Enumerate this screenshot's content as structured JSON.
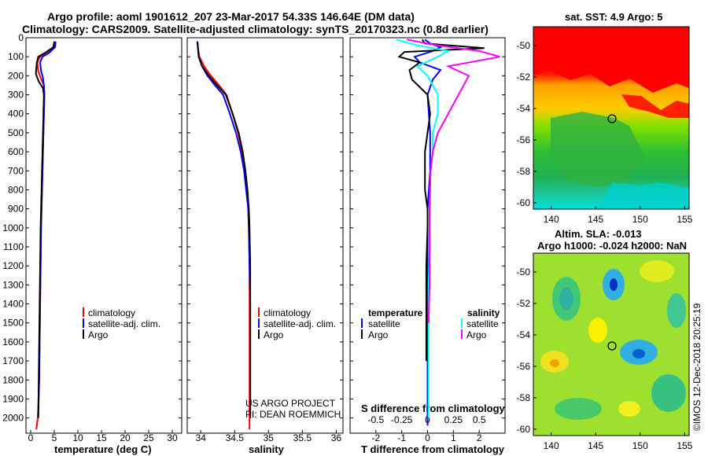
{
  "header": {
    "line1": "Argo profile: aoml 1901612_207 23-Mar-2017 54.33S 146.64E (DM data)",
    "line2": "Climatology: CARS2009. Satellite-adjusted climatology: synTS_20170323.nc (0.8d earlier)"
  },
  "depth_ticks": [
    "0",
    "100",
    "200",
    "300",
    "400",
    "500",
    "600",
    "700",
    "800",
    "900",
    "1000",
    "1100",
    "1200",
    "1300",
    "1400",
    "1500",
    "1600",
    "1700",
    "1800",
    "1900",
    "2000"
  ],
  "colors": {
    "climatology": "#ff0000",
    "satellite": "#0000ff",
    "argo": "#000000",
    "sat_s": "#00ffff",
    "argo_s": "#ff00ff"
  },
  "chart_data": [
    {
      "type": "line",
      "name": "temperature-panel",
      "xlabel": "temperature (deg C)",
      "ylabel": "",
      "xlim": [
        -1,
        32
      ],
      "ylim": [
        2080,
        0
      ],
      "xticks": [
        "0",
        "5",
        "10",
        "15",
        "20",
        "25",
        "30"
      ],
      "legend": [
        "climatology",
        "satellite-adj. clim.",
        "Argo"
      ],
      "series": [
        {
          "name": "climatology",
          "color": "#ff0000",
          "x": [
            5.3,
            5.2,
            3.6,
            2.0,
            1.4,
            1.6,
            2.1,
            2.8,
            2.9,
            2.8,
            2.7,
            2.6,
            2.5,
            2.4,
            2.3,
            2.2,
            2.1,
            2.0,
            1.9,
            1.8,
            1.6,
            1.5,
            1.2
          ],
          "y": [
            20,
            50,
            80,
            100,
            130,
            175,
            210,
            250,
            300,
            400,
            500,
            600,
            700,
            800,
            900,
            1000,
            1200,
            1400,
            1600,
            1800,
            1950,
            2000,
            2060
          ]
        },
        {
          "name": "satellite-adj. clim.",
          "color": "#0000ff",
          "x": [
            5.2,
            5.1,
            3.9,
            2.5,
            2.0,
            2.2,
            2.6,
            2.8,
            2.9,
            2.8,
            2.7,
            2.6,
            2.5,
            2.4,
            2.3,
            2.2,
            2.1,
            2.0,
            1.9,
            1.8,
            1.6
          ],
          "y": [
            20,
            50,
            80,
            100,
            130,
            175,
            210,
            250,
            300,
            400,
            500,
            600,
            700,
            800,
            900,
            1000,
            1200,
            1400,
            1600,
            1800,
            2000
          ]
        },
        {
          "name": "Argo",
          "color": "#000000",
          "x": [
            5.0,
            4.8,
            3.0,
            1.6,
            1.3,
            1.1,
            1.7,
            2.6,
            2.8,
            2.7,
            2.6,
            2.5,
            2.4,
            2.3,
            2.2,
            2.1,
            2.0,
            1.9,
            1.8,
            1.7,
            1.6
          ],
          "y": [
            20,
            50,
            80,
            100,
            130,
            190,
            230,
            265,
            300,
            400,
            500,
            600,
            700,
            800,
            900,
            1000,
            1200,
            1400,
            1600,
            1800,
            2000
          ]
        }
      ]
    },
    {
      "type": "line",
      "name": "salinity-panel",
      "xlabel": "salinity",
      "ylabel": "",
      "xlim": [
        33.8,
        36.1
      ],
      "ylim": [
        2080,
        0
      ],
      "xticks": [
        "34",
        "34.5",
        "35",
        "35.5",
        "36"
      ],
      "legend": [
        "climatology",
        "satellite-adj. clim.",
        "Argo"
      ],
      "series": [
        {
          "name": "climatology",
          "color": "#ff0000",
          "x": [
            33.95,
            33.96,
            33.98,
            34.05,
            34.15,
            34.27,
            34.38,
            34.47,
            34.55,
            34.61,
            34.65,
            34.68,
            34.7,
            34.71,
            34.72,
            34.72,
            34.72,
            34.72,
            34.72,
            34.72
          ],
          "y": [
            20,
            60,
            100,
            150,
            200,
            250,
            300,
            400,
            500,
            600,
            700,
            800,
            900,
            1000,
            1200,
            1400,
            1600,
            1800,
            2000,
            2060
          ]
        },
        {
          "name": "satellite-adj. clim.",
          "color": "#0000ff",
          "x": [
            33.95,
            33.96,
            33.97,
            34.02,
            34.1,
            34.21,
            34.33,
            34.43,
            34.52,
            34.59,
            34.64,
            34.67,
            34.7,
            34.71,
            34.72,
            34.73,
            34.73,
            34.73,
            34.73
          ],
          "y": [
            20,
            60,
            100,
            150,
            200,
            250,
            300,
            400,
            500,
            600,
            700,
            800,
            900,
            1000,
            1200,
            1400,
            1600,
            1800,
            2000
          ]
        },
        {
          "name": "Argo",
          "color": "#000000",
          "x": [
            33.95,
            33.96,
            33.97,
            34.02,
            34.12,
            34.24,
            34.37,
            34.47,
            34.56,
            34.62,
            34.66,
            34.69,
            34.71,
            34.72,
            34.73,
            34.73,
            34.73,
            34.73,
            34.73
          ],
          "y": [
            20,
            60,
            100,
            150,
            200,
            250,
            300,
            400,
            500,
            600,
            700,
            800,
            900,
            1000,
            1200,
            1400,
            1600,
            1800,
            2000
          ]
        }
      ]
    },
    {
      "type": "line",
      "name": "difference-panel",
      "xlabel": "T difference from climatology",
      "top_label": "S difference from climatology",
      "xlim": [
        -3,
        3
      ],
      "ylim": [
        2080,
        0
      ],
      "xticks": [
        "-2",
        "-1",
        "0",
        "1",
        "2"
      ],
      "sticks": [
        "-0.5",
        "-0.25",
        "0",
        "0.25",
        "0.5"
      ],
      "legend_titles": [
        "temperature",
        "salinity"
      ],
      "legend_left": [
        "satellite",
        "Argo"
      ],
      "legend_right": [
        "satellite",
        "Argo"
      ],
      "series": [
        {
          "name": "temperature satellite",
          "color": "#0000ff",
          "x": [
            -0.1,
            0.1,
            0.5,
            0.2,
            -0.5,
            -0.3,
            0.5,
            0.2,
            0.0,
            0.1,
            0.1,
            0.0,
            0.0,
            0.0,
            0.0,
            0.0,
            0.0,
            0.0,
            0.0
          ],
          "y": [
            10,
            30,
            50,
            70,
            100,
            130,
            170,
            220,
            300,
            500,
            700,
            900,
            1100,
            1300,
            1500,
            1700,
            1900,
            2000,
            2040
          ]
        },
        {
          "name": "temperature Argo",
          "color": "#000000",
          "x": [
            -0.2,
            -0.1,
            2.2,
            -0.9,
            -1.1,
            -0.3,
            -0.7,
            -0.6,
            0.0,
            0.1,
            0.0,
            -0.1,
            -0.1,
            -0.1,
            0.0,
            0.0,
            -0.05,
            -0.05,
            -0.05,
            -0.05
          ],
          "y": [
            10,
            30,
            55,
            75,
            100,
            130,
            170,
            220,
            300,
            400,
            500,
            600,
            700,
            800,
            900,
            1000,
            1200,
            1400,
            1600,
            1700
          ]
        },
        {
          "name": "salinity satellite",
          "color": "#00ffff",
          "x": [
            -0.3,
            -0.1,
            0.2,
            0.1,
            -0.1,
            0.0,
            0.1,
            0.1,
            0.05,
            0.05,
            0.03,
            0.02,
            0.02,
            0.01,
            0.01,
            0.01,
            0.01
          ],
          "y": [
            10,
            40,
            70,
            100,
            150,
            200,
            300,
            400,
            500,
            600,
            700,
            900,
            1100,
            1300,
            1500,
            1800,
            2000
          ]
        },
        {
          "name": "salinity Argo",
          "color": "#ff00ff",
          "x": [
            -0.2,
            0.1,
            0.5,
            0.7,
            0.2,
            0.4,
            0.3,
            0.2,
            0.1,
            0.05,
            0.03,
            0.02,
            0.02,
            0.02,
            0.01
          ],
          "y": [
            10,
            40,
            70,
            100,
            150,
            200,
            300,
            400,
            500,
            600,
            700,
            900,
            1100,
            1300,
            1500
          ]
        }
      ],
      "credit1": "US ARGO PROJECT",
      "credit2": "PI: DEAN ROEMMICH"
    }
  ],
  "map_sst": {
    "title": "sat. SST: 4.9 Argo: 5",
    "xticks": [
      "140",
      "145",
      "150",
      "155"
    ],
    "yticks": [
      "-50",
      "-52",
      "-54",
      "-56",
      "-58",
      "-60"
    ]
  },
  "map_sla": {
    "title1": "Altim. SLA: -0.013",
    "title2": "Argo h1000: -0.024 h2000: NaN",
    "xticks": [
      "140",
      "145",
      "150",
      "155"
    ],
    "yticks": [
      "-50",
      "-52",
      "-54",
      "-56",
      "-58",
      "-60"
    ]
  },
  "watermark": "©IMOS 12-Dec-2018 20:25:19"
}
